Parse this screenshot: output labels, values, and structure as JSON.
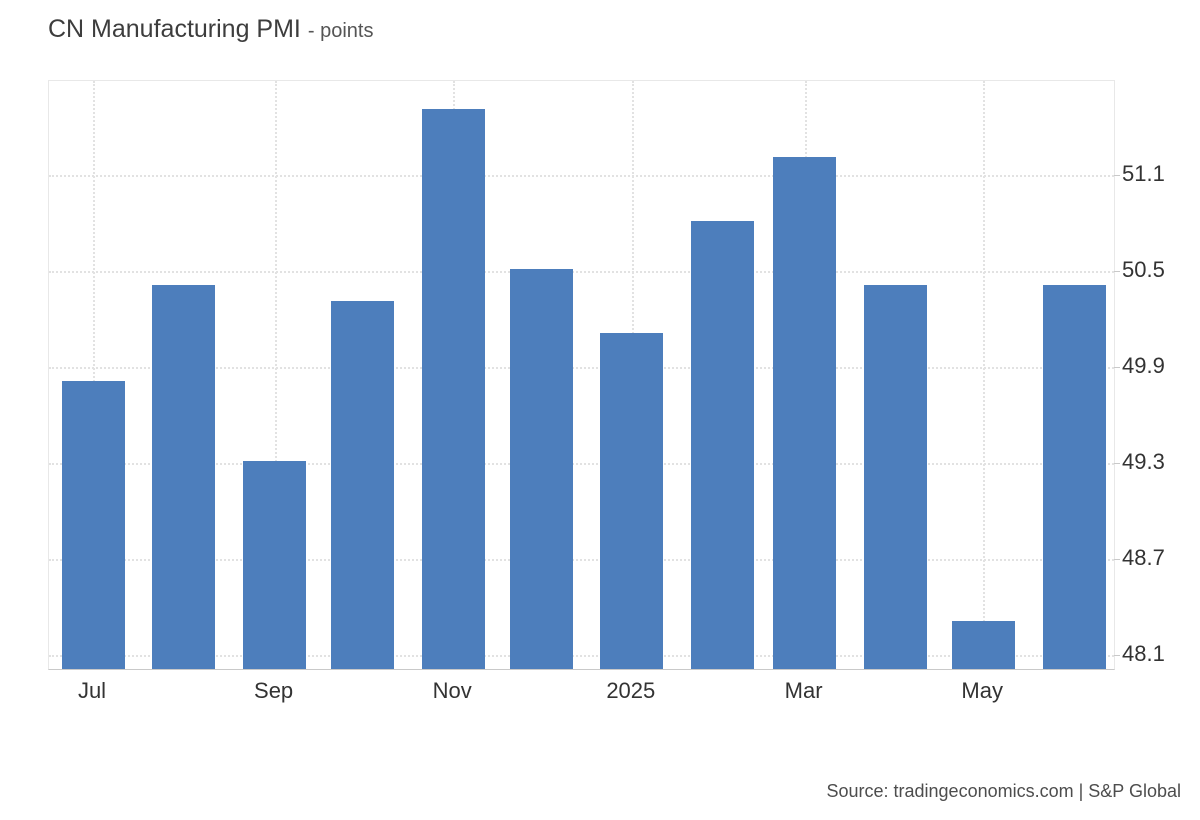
{
  "header": {
    "title": "CN Manufacturing PMI",
    "subtitle": "- points"
  },
  "footer": {
    "source": "Source: tradingeconomics.com | S&P Global"
  },
  "chart_data": {
    "type": "bar",
    "title": "CN Manufacturing PMI",
    "unit": "points",
    "categories": [
      "Jul 2024",
      "Aug 2024",
      "Sep 2024",
      "Oct 2024",
      "Nov 2024",
      "Dec 2024",
      "Jan 2025",
      "Feb 2025",
      "Mar 2025",
      "Apr 2025",
      "May 2025",
      "Jun 2025"
    ],
    "values": [
      49.8,
      50.4,
      49.3,
      50.3,
      51.5,
      50.5,
      50.1,
      50.8,
      51.2,
      50.4,
      48.3,
      50.4
    ],
    "x_day_offsets": [
      0,
      31,
      62,
      92,
      123,
      153,
      184,
      215,
      243,
      274,
      304,
      335
    ],
    "x_ticks": [
      {
        "index": 0,
        "label": "Jul"
      },
      {
        "index": 2,
        "label": "Sep"
      },
      {
        "index": 4,
        "label": "Nov"
      },
      {
        "index": 6,
        "label": "2025"
      },
      {
        "index": 8,
        "label": "Mar"
      },
      {
        "index": 10,
        "label": "May"
      }
    ],
    "y_ticks": [
      48.1,
      48.7,
      49.3,
      49.9,
      50.5,
      51.1
    ],
    "ylim": [
      48.0,
      51.69
    ],
    "grid": "dotted",
    "legend": "none",
    "bar_color": "#4d7ebc"
  },
  "colors": {
    "bar": "#4d7ebc",
    "title_text": "#3d3d3d",
    "subtitle_text": "#555555",
    "axis_text": "#333333",
    "source_text": "#4d4d4d",
    "gridline": "#e2e2e2",
    "plot_border": "#e8e8e8",
    "axis_line": "#c9c9c9",
    "background": "#ffffff"
  }
}
